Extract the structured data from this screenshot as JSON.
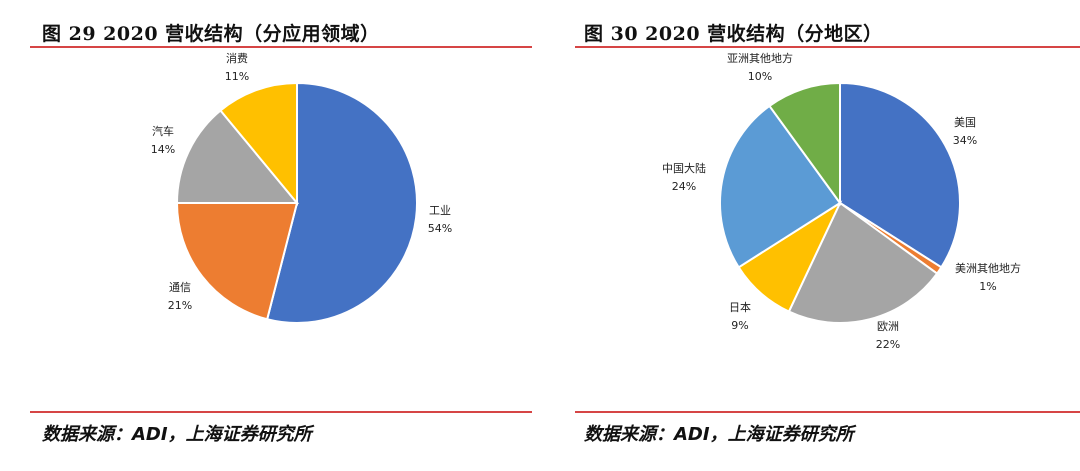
{
  "colors": {
    "blue": "#4472c4",
    "orange": "#ed7d31",
    "gray": "#a5a5a5",
    "yellow": "#ffc000",
    "lightblue": "#5b9bd5",
    "green": "#70ad47",
    "rule": "#d64545"
  },
  "chart_data": [
    {
      "type": "pie",
      "title": "图 29 2020 营收结构（分应用领域）",
      "source": "数据来源：ADI，上海证券研究所",
      "slices": [
        {
          "label": "工业",
          "value": 54,
          "pct": "54%",
          "color": "#4472c4"
        },
        {
          "label": "通信",
          "value": 21,
          "pct": "21%",
          "color": "#ed7d31"
        },
        {
          "label": "汽车",
          "value": 14,
          "pct": "14%",
          "color": "#a5a5a5"
        },
        {
          "label": "消费",
          "value": 11,
          "pct": "11%",
          "color": "#ffc000"
        }
      ]
    },
    {
      "type": "pie",
      "title": "图 30 2020 营收结构（分地区）",
      "source": "数据来源：ADI，上海证券研究所",
      "slices": [
        {
          "label": "美国",
          "value": 34,
          "pct": "34%",
          "color": "#4472c4"
        },
        {
          "label": "美洲其他地方",
          "value": 1,
          "pct": "1%",
          "color": "#ed7d31"
        },
        {
          "label": "欧洲",
          "value": 22,
          "pct": "22%",
          "color": "#a5a5a5"
        },
        {
          "label": "日本",
          "value": 9,
          "pct": "9%",
          "color": "#ffc000"
        },
        {
          "label": "中国大陆",
          "value": 24,
          "pct": "24%",
          "color": "#5b9bd5"
        },
        {
          "label": "亚洲其他地方",
          "value": 10,
          "pct": "10%",
          "color": "#70ad47"
        }
      ]
    }
  ]
}
